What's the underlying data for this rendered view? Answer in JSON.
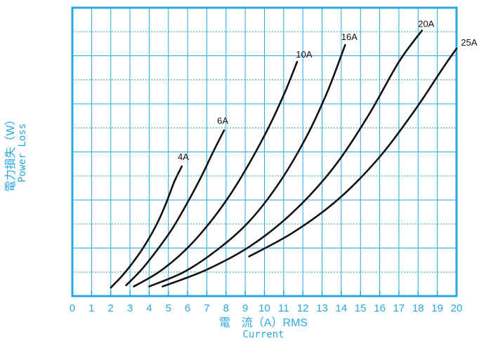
{
  "chart_data": {
    "type": "line",
    "title": "",
    "xlabel": "電　流（A）RMS",
    "xlabel_en": "Current",
    "ylabel": "電力損失（W）",
    "ylabel_en": "Power Loss",
    "xlim": [
      0,
      20
    ],
    "xticks": [
      "0",
      "1",
      "2",
      "3",
      "4",
      "5",
      "6",
      "7",
      "8",
      "9",
      "10",
      "11",
      "12",
      "13",
      "14",
      "15",
      "16",
      "17",
      "18",
      "19",
      "20"
    ],
    "ylim": [
      0,
      12
    ],
    "y_gridlines": 12,
    "grid": true,
    "axis_color": "#29a8e0",
    "line_color": "#111111",
    "series": [
      {
        "name": "4A",
        "x": [
          2.0,
          2.6,
          3.2,
          3.8,
          4.4,
          4.9,
          5.3,
          5.7
        ],
        "y": [
          0.35,
          0.85,
          1.45,
          2.15,
          3.0,
          3.9,
          4.75,
          5.4
        ]
      },
      {
        "name": "6A",
        "x": [
          2.8,
          3.6,
          4.4,
          5.2,
          6.0,
          6.7,
          7.3,
          7.9
        ],
        "y": [
          0.45,
          1.1,
          1.9,
          2.8,
          3.9,
          4.95,
          5.95,
          6.9
        ]
      },
      {
        "name": "10A",
        "x": [
          3.2,
          4.5,
          5.8,
          7.0,
          8.2,
          9.3,
          10.3,
          11.1,
          11.7
        ],
        "y": [
          0.4,
          1.0,
          1.85,
          2.9,
          4.2,
          5.65,
          7.15,
          8.55,
          9.75
        ]
      },
      {
        "name": "16A",
        "x": [
          4.0,
          5.8,
          7.5,
          9.2,
          10.8,
          12.2,
          13.3,
          14.2
        ],
        "y": [
          0.4,
          1.0,
          1.9,
          3.1,
          4.75,
          6.65,
          8.55,
          10.45
        ]
      },
      {
        "name": "20A",
        "x": [
          4.7,
          7.0,
          9.3,
          11.5,
          13.6,
          15.4,
          17.0,
          18.2
        ],
        "y": [
          0.4,
          1.1,
          2.1,
          3.5,
          5.35,
          7.5,
          9.75,
          11.05
        ]
      },
      {
        "name": "25A",
        "x": [
          9.2,
          11.5,
          13.8,
          15.9,
          17.8,
          19.3,
          20.0
        ],
        "y": [
          1.65,
          2.65,
          4.0,
          5.7,
          7.7,
          9.5,
          10.3
        ]
      }
    ],
    "labels": [
      {
        "text": "4A"
      },
      {
        "text": "6A"
      },
      {
        "text": "10A"
      },
      {
        "text": "16A"
      },
      {
        "text": "20A"
      },
      {
        "text": "25A"
      }
    ]
  }
}
